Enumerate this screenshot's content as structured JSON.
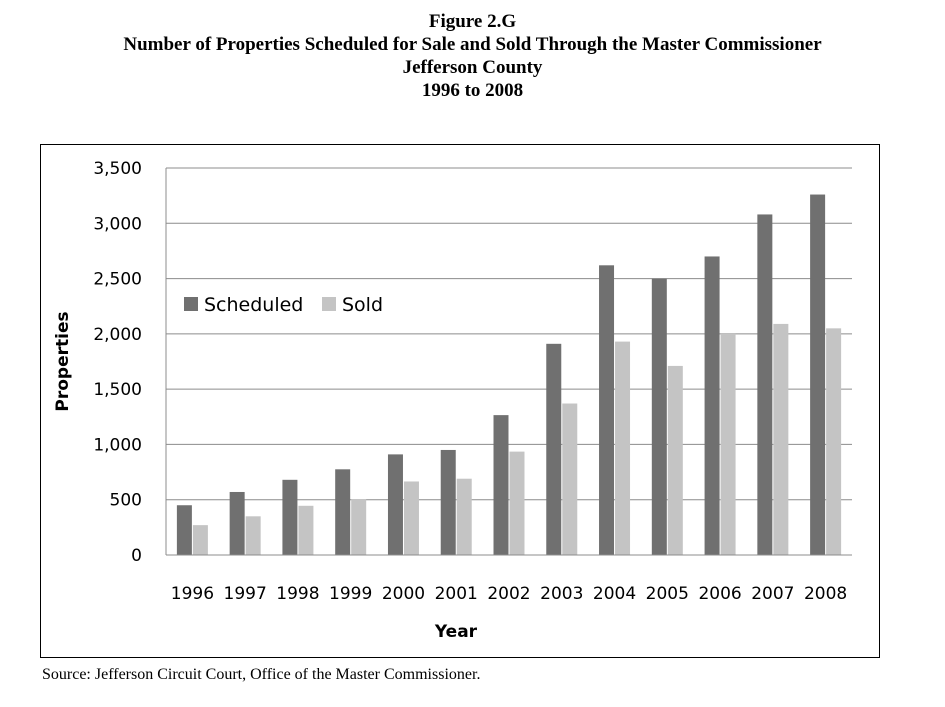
{
  "title_lines": [
    "Figure 2.G",
    "Number of Properties Scheduled for Sale and Sold Through the Master Commissioner",
    "Jefferson County",
    "1996 to 2008"
  ],
  "source": "Source: Jefferson Circuit Court, Office of the Master Commissioner.",
  "chart_data": {
    "type": "bar",
    "categories": [
      "1996",
      "1997",
      "1998",
      "1999",
      "2000",
      "2001",
      "2002",
      "2003",
      "2004",
      "2005",
      "2006",
      "2007",
      "2008"
    ],
    "series": [
      {
        "name": "Scheduled",
        "color": "#707070",
        "values": [
          450,
          570,
          680,
          775,
          910,
          950,
          1265,
          1910,
          2620,
          2500,
          2700,
          3080,
          3260
        ]
      },
      {
        "name": "Sold",
        "color": "#c4c4c4",
        "values": [
          270,
          350,
          445,
          505,
          665,
          690,
          935,
          1370,
          1930,
          1710,
          2000,
          2090,
          2050
        ]
      }
    ],
    "xlabel": "Year",
    "ylabel": "Properties",
    "ylim": [
      0,
      3500
    ],
    "yticks": [
      0,
      500,
      1000,
      1500,
      2000,
      2500,
      3000,
      3500
    ],
    "ytick_labels": [
      "0",
      "500",
      "1,000",
      "1,500",
      "2,000",
      "2,500",
      "3,000",
      "3,500"
    ],
    "grid": true,
    "legend_position": "upper-left"
  }
}
